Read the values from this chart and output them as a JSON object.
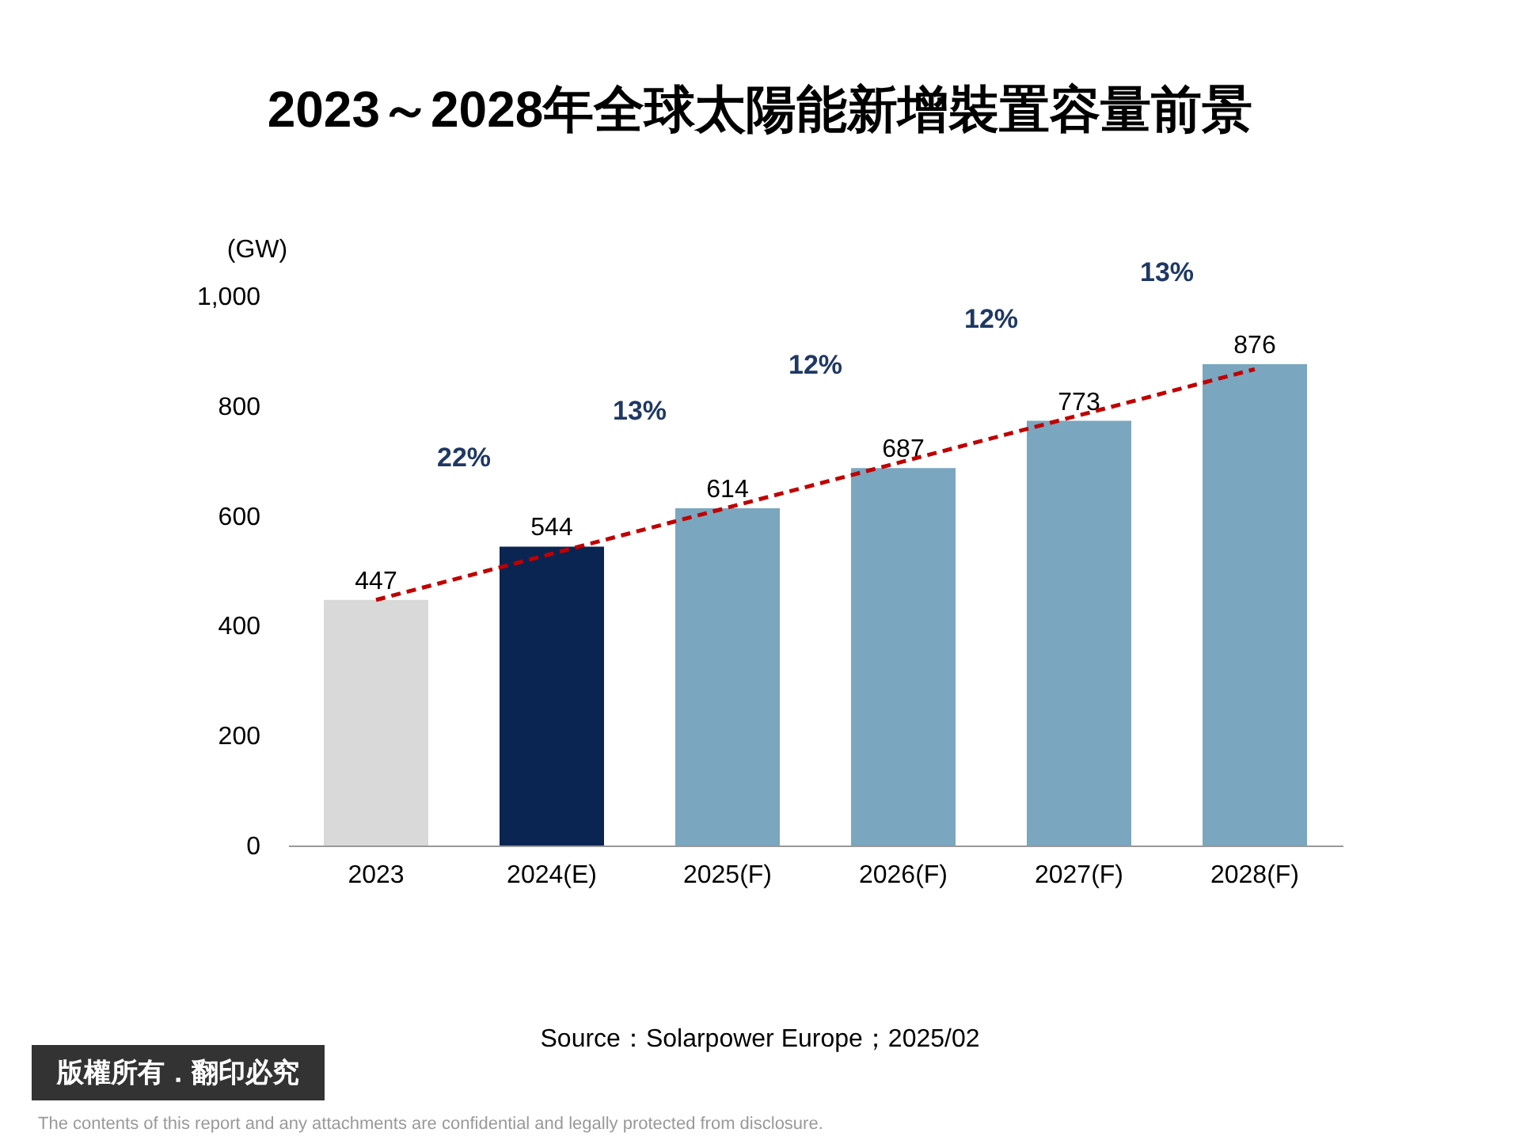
{
  "chart_data": {
    "type": "bar",
    "title": "2023～2028年全球太陽能新增裝置容量前景",
    "ylabel": "(GW)",
    "categories": [
      "2023",
      "2024(E)",
      "2025(F)",
      "2026(F)",
      "2027(F)",
      "2028(F)"
    ],
    "series": [
      {
        "colors": [
          "#d9d9d9",
          "#0b2552",
          "#7aa6bf",
          "#7aa6bf",
          "#7aa6bf",
          "#7aa6bf"
        ],
        "values": [
          447,
          544,
          614,
          687,
          773,
          876
        ],
        "value_labels": [
          "447",
          "544",
          "614",
          "687",
          "773",
          "876"
        ]
      },
      {
        "type": "line",
        "values": [
          447,
          531,
          615,
          699,
          783,
          867
        ],
        "color": "#c00000",
        "line_style": "dashed",
        "marker": "none"
      }
    ],
    "ylim": [
      0,
      1000
    ],
    "yticks": [
      0,
      200,
      400,
      600,
      800,
      {
        "value": 1000,
        "label": "1,000"
      }
    ],
    "grid": false,
    "legend": false,
    "annotations": [
      "22%",
      "13%",
      "12%",
      "12%",
      "13%",
      "Source：Solarpower Europe；2025/02",
      "版權所有．翻印必究",
      "The contents of this report and any attachments are confidential and legally protected from disclosure."
    ]
  }
}
